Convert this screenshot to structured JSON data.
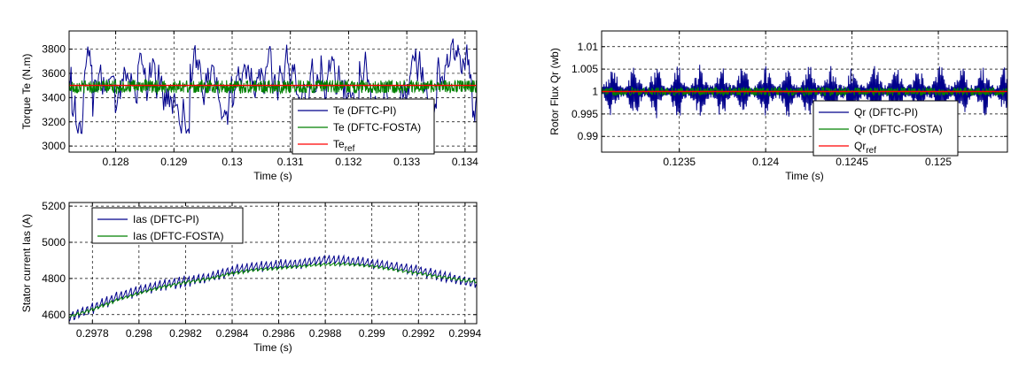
{
  "chart_data": [
    {
      "type": "line",
      "xlabel": "Time (s)",
      "ylabel": "Torque Te (N.m)",
      "xlim": [
        0.1272,
        0.1342
      ],
      "ylim": [
        2950,
        3950
      ],
      "xticks": [
        0.128,
        0.129,
        0.13,
        0.131,
        0.132,
        0.133,
        0.134
      ],
      "yticks": [
        3000,
        3200,
        3400,
        3600,
        3800
      ],
      "xtick_labels": [
        "0.128",
        "0.129",
        "0.13",
        "0.131",
        "0.132",
        "0.133",
        "0.134"
      ],
      "ytick_labels": [
        "3000",
        "3200",
        "3400",
        "3600",
        "3800"
      ],
      "grid": true,
      "legend_position": "lower-right",
      "series": [
        {
          "name": "Te (DFTC-PI)",
          "name_sub": "",
          "color": "#00008B",
          "style": "noisy",
          "base": 3500,
          "amplitude": 330,
          "spread": 0.9
        },
        {
          "name": "Te (DFTC-FOSTA)",
          "name_sub": "",
          "color": "#008000",
          "style": "band",
          "base": 3490,
          "amplitude": 55
        },
        {
          "name": "Te",
          "name_sub": "ref",
          "color": "#FF0000",
          "style": "flat",
          "base": 3500
        }
      ]
    },
    {
      "type": "line",
      "xlabel": "Time (s)",
      "ylabel": "Rotor Flux Qr (wb)",
      "xlim": [
        0.12305,
        0.1254
      ],
      "ylim": [
        0.9865,
        1.0135
      ],
      "xticks": [
        0.1235,
        0.124,
        0.1245,
        0.125
      ],
      "yticks": [
        0.99,
        0.995,
        1.0,
        1.005,
        1.01
      ],
      "xtick_labels": [
        "0.1235",
        "0.124",
        "0.1245",
        "0.125"
      ],
      "ytick_labels": [
        "0.99",
        "0.995",
        "1",
        "1.005",
        "1.01"
      ],
      "grid": true,
      "legend_position": "lower-right",
      "series": [
        {
          "name": "Qr (DFTC-PI)",
          "name_sub": "",
          "color": "#00008B",
          "style": "spiky",
          "base": 1.0,
          "amplitude": 0.006
        },
        {
          "name": "Qr (DFTC-FOSTA)",
          "name_sub": "",
          "color": "#008000",
          "style": "band",
          "base": 1.0,
          "amplitude": 0.0009
        },
        {
          "name": "Qr",
          "name_sub": "ref",
          "color": "#FF0000",
          "style": "flat",
          "base": 1.0
        }
      ]
    },
    {
      "type": "line",
      "xlabel": "Time (s)",
      "ylabel": "Stator current Ias (A)",
      "xlim": [
        0.2977,
        0.29945
      ],
      "ylim": [
        4550,
        5220
      ],
      "xticks": [
        0.2978,
        0.298,
        0.2982,
        0.2984,
        0.2986,
        0.2988,
        0.299,
        0.2992,
        0.2994
      ],
      "yticks": [
        4600,
        4800,
        5000,
        5200
      ],
      "xtick_labels": [
        "0.2978",
        "0.298",
        "0.2982",
        "0.2984",
        "0.2986",
        "0.2988",
        "0.299",
        "0.2992",
        "0.2994"
      ],
      "ytick_labels": [
        "4600",
        "4800",
        "5000",
        "5200"
      ],
      "grid": true,
      "legend_position": "top-left",
      "series": [
        {
          "name": "Ias (DFTC-PI)",
          "name_sub": "",
          "color": "#00008B",
          "style": "curve",
          "x": [
            0.2977,
            0.2978,
            0.2979,
            0.298,
            0.2981,
            0.2982,
            0.2983,
            0.2984,
            0.2985,
            0.2986,
            0.2987,
            0.2988,
            0.2989,
            0.299,
            0.2991,
            0.2992,
            0.2993,
            0.2994,
            0.29945
          ],
          "y": [
            4590,
            4640,
            4700,
            4740,
            4770,
            4790,
            4810,
            4850,
            4870,
            4880,
            4890,
            4910,
            4900,
            4890,
            4870,
            4850,
            4820,
            4790,
            4780
          ],
          "amplitude": 40
        },
        {
          "name": "Ias (DFTC-FOSTA)",
          "name_sub": "",
          "color": "#008000",
          "style": "curve",
          "x": [
            0.2977,
            0.2978,
            0.2979,
            0.298,
            0.2981,
            0.2982,
            0.2983,
            0.2984,
            0.2985,
            0.2986,
            0.2987,
            0.2988,
            0.2989,
            0.299,
            0.2991,
            0.2992,
            0.2993,
            0.2994,
            0.29945
          ],
          "y": [
            4590,
            4630,
            4680,
            4720,
            4755,
            4780,
            4800,
            4830,
            4850,
            4860,
            4870,
            4880,
            4880,
            4870,
            4850,
            4830,
            4810,
            4790,
            4785
          ],
          "amplitude": 12
        }
      ]
    }
  ]
}
